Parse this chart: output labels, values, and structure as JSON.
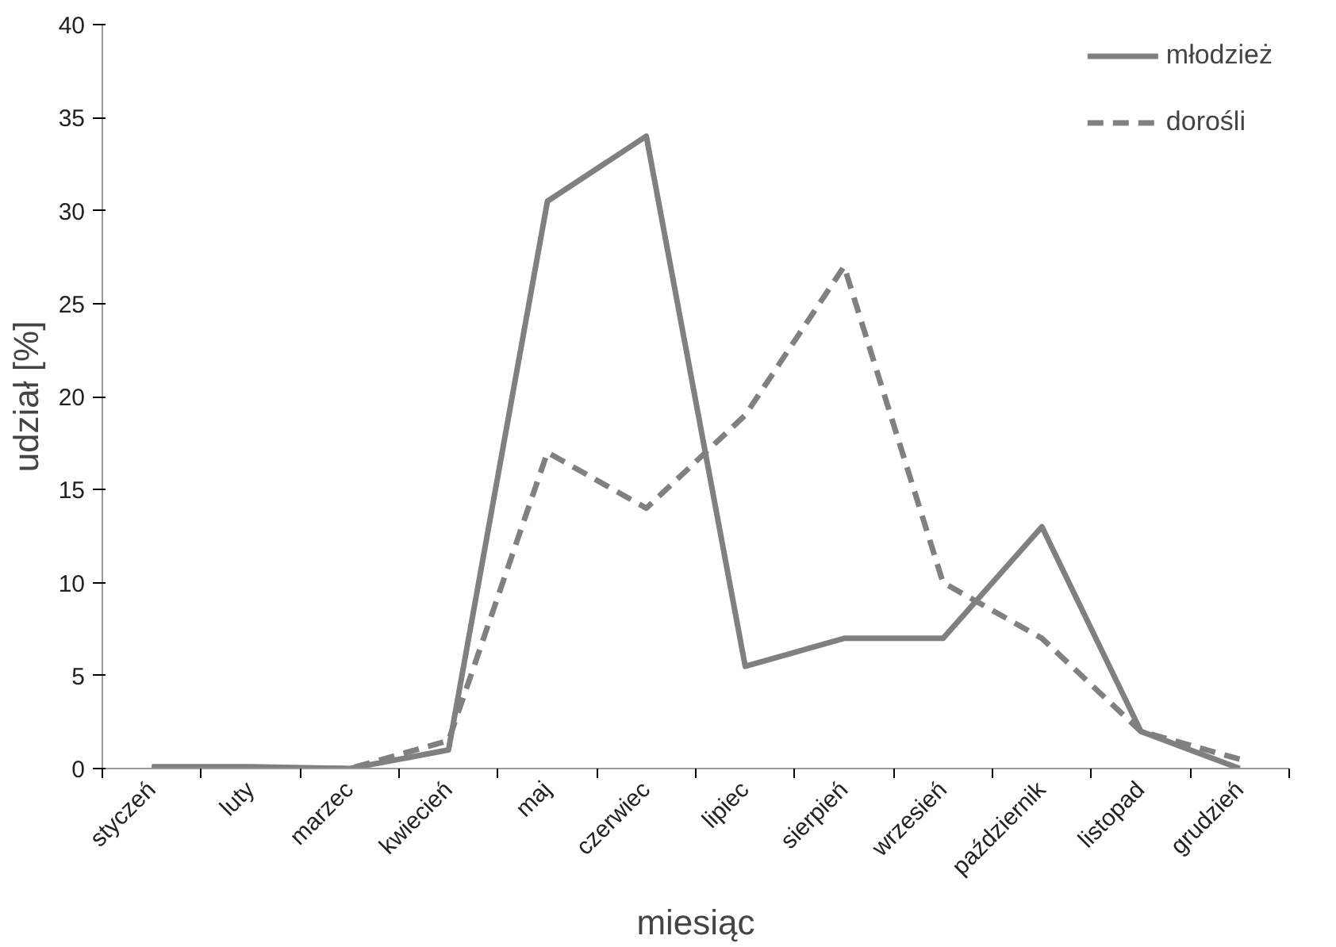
{
  "chart_data": {
    "type": "line",
    "xlabel": "miesiąc",
    "ylabel": "udział [%]",
    "categories": [
      "styczeń",
      "luty",
      "marzec",
      "kwiecień",
      "maj",
      "czerwiec",
      "lipiec",
      "sierpień",
      "wrzesień",
      "październik",
      "listopad",
      "grudzień"
    ],
    "series": [
      {
        "name": "młodzież",
        "color": "#808080",
        "line_style": "solid",
        "values": [
          0.1,
          0.1,
          0,
          1,
          30.5,
          34,
          5.5,
          7,
          7,
          13,
          2,
          0
        ]
      },
      {
        "name": "dorośli",
        "color": "#808080",
        "line_style": "dashed",
        "values": [
          0,
          0,
          0,
          1.5,
          17,
          14,
          19,
          27,
          10,
          7,
          2,
          0.5
        ]
      }
    ],
    "ylim": [
      0,
      40
    ],
    "yticks": [
      0,
      5,
      10,
      15,
      20,
      25,
      30,
      35,
      40
    ],
    "grid": false,
    "legend": "top right",
    "marker": "none"
  }
}
